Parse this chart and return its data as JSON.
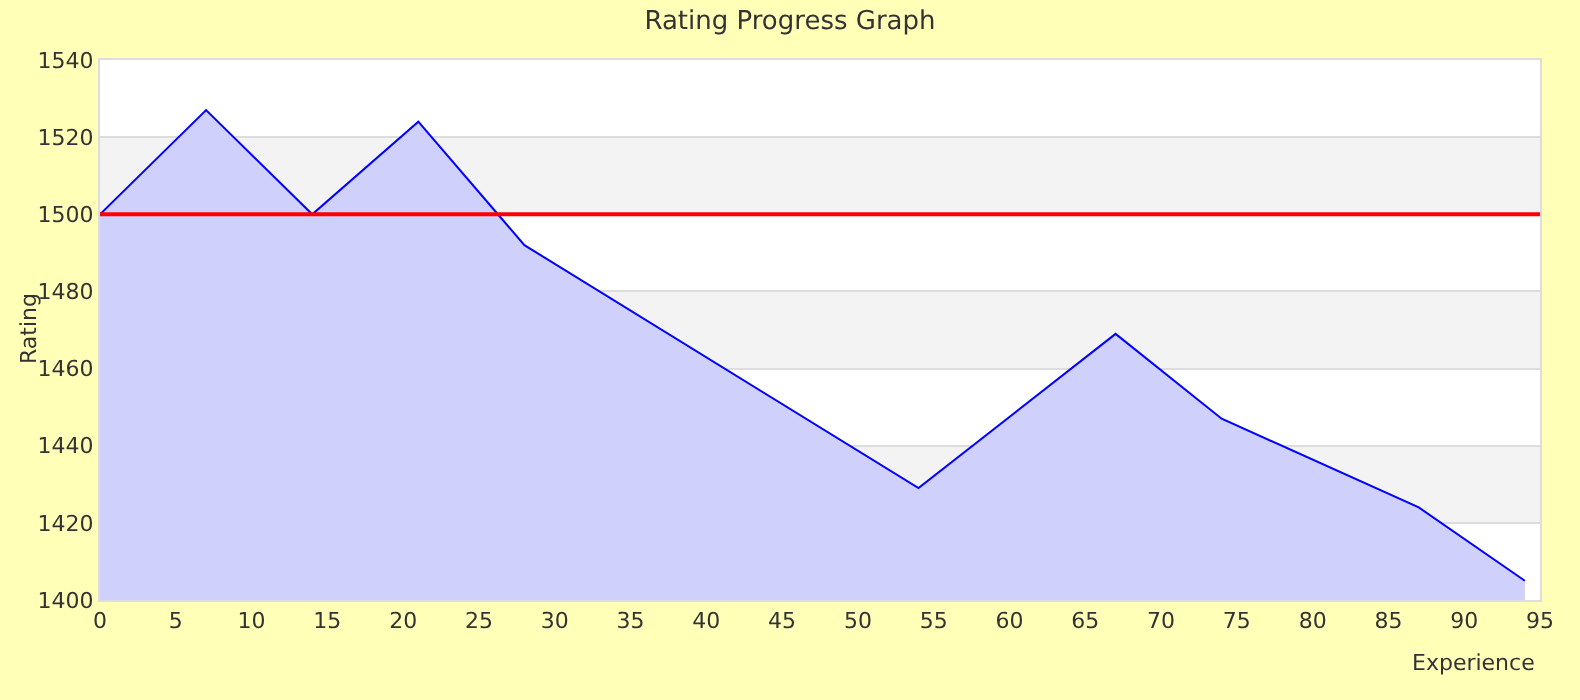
{
  "chart_data": {
    "type": "area",
    "title": "Rating Progress Graph",
    "xlabel": "Experience",
    "ylabel": "Rating",
    "x": [
      0,
      7,
      14,
      21,
      28,
      54,
      67,
      74,
      87,
      94
    ],
    "series": [
      {
        "color": "#0000ff",
        "values": [
          1500,
          1527,
          1500,
          1524,
          1492,
          1429,
          1469,
          1447,
          1424,
          1405
        ]
      }
    ],
    "xlim": [
      0,
      95
    ],
    "xticks": [
      0,
      5,
      10,
      15,
      20,
      25,
      30,
      35,
      40,
      45,
      50,
      55,
      60,
      65,
      70,
      75,
      80,
      85,
      90,
      95
    ],
    "ylim": [
      1400,
      1540
    ],
    "yticks": [
      1400,
      1420,
      1440,
      1460,
      1480,
      1500,
      1520,
      1540
    ],
    "grid": "y",
    "ref_lines": [
      {
        "axis": "y",
        "value": 1500,
        "color": "#ff0000"
      }
    ],
    "bands": [
      {
        "axis": "y",
        "from": 1500,
        "to": 1520,
        "color": "#f3f3f3"
      },
      {
        "axis": "y",
        "from": 1460,
        "to": 1480,
        "color": "#f3f3f3"
      },
      {
        "axis": "y",
        "from": 1420,
        "to": 1440,
        "color": "#f3f3f3"
      }
    ]
  }
}
